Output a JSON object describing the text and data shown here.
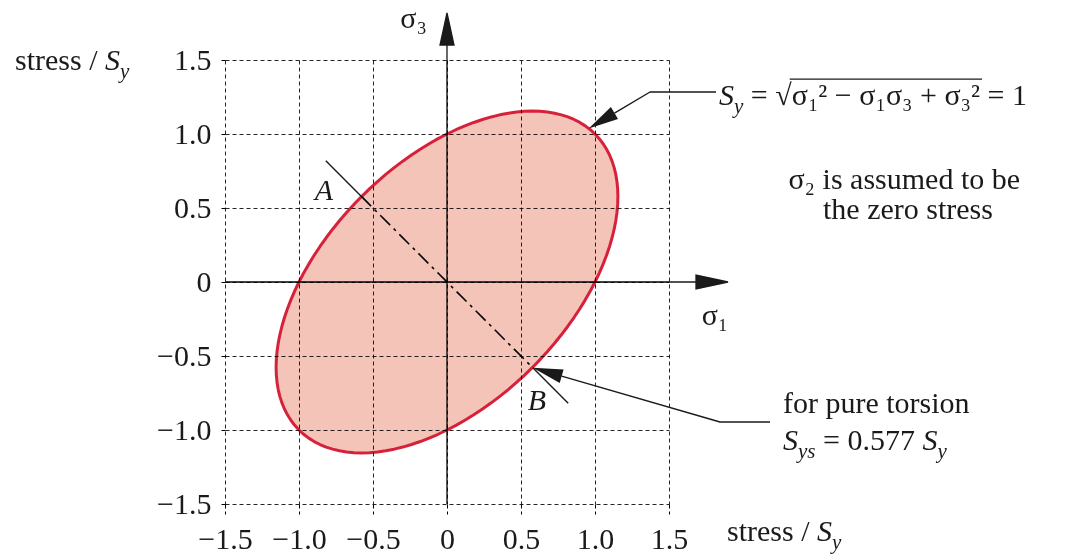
{
  "chart_data": {
    "type": "line",
    "xlabel": "stress / S$_{y}$",
    "ylabel": "stress / S$_{y}$",
    "xlim": [
      -1.5,
      1.5
    ],
    "ylim": [
      -1.5,
      1.5
    ],
    "xticks": [
      -1.5,
      {
        "value": -1,
        "label": "−1.0"
      },
      -0.5,
      0,
      0.5,
      {
        "value": 1,
        "label": "1.0"
      },
      1.5
    ],
    "yticks": [
      -1.5,
      {
        "value": -1,
        "label": "−1.0"
      },
      -0.5,
      0,
      0.5,
      {
        "value": 1,
        "label": "1.0"
      },
      1.5
    ],
    "grid": true,
    "series": [
      {
        "color": "#000000",
        "line_style": "dashed",
        "x": [
          -0.58,
          0.58
        ],
        "values": [
          0.58,
          -0.58
        ]
      }
    ],
    "ref_lines": [
      {
        "axis": "y",
        "value": 0,
        "label": "σ₁"
      },
      {
        "axis": "x",
        "value": 0,
        "label": "σ₃"
      }
    ],
    "annotations": [
      "S$_{y}$ = √σ₁² − σ₁σ₃ + σ₃² = 1",
      "σ₂ is assumed to be the zero stress",
      {
        "text": "A",
        "x": -0.58,
        "y": 0.58
      },
      {
        "text": "B",
        "x": 0.58,
        "y": -0.58
      },
      "for pure torsion S$_{ys}$ = 0.577 S$_{y}$"
    ]
  }
}
